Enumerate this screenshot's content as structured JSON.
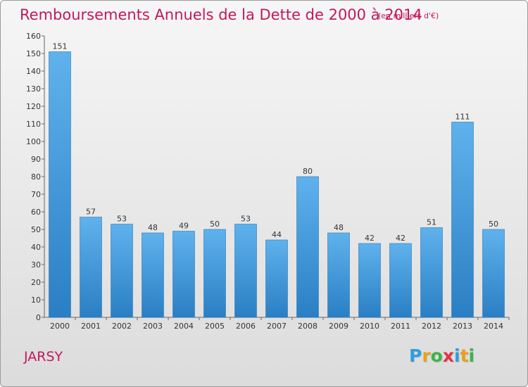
{
  "chart_data": {
    "type": "bar",
    "title": "Remboursements Annuels de la Dette de 2000 à 2014",
    "subtitle": "(en milliers d'€)",
    "categories": [
      "2000",
      "2001",
      "2002",
      "2003",
      "2004",
      "2005",
      "2006",
      "2007",
      "2008",
      "2009",
      "2010",
      "2011",
      "2012",
      "2013",
      "2014"
    ],
    "values": [
      151,
      57,
      53,
      48,
      49,
      50,
      53,
      44,
      80,
      48,
      42,
      42,
      51,
      111,
      50
    ],
    "ylim": [
      0,
      160
    ],
    "yticks": [
      0,
      10,
      20,
      30,
      40,
      50,
      60,
      70,
      80,
      90,
      100,
      110,
      120,
      130,
      140,
      150,
      160
    ],
    "xlabel": "",
    "ylabel": "",
    "grid": false,
    "bar_color": "#4a9fe0"
  },
  "footer": {
    "commune": "JARSY",
    "logo_letters": [
      "P",
      "r",
      "o",
      "x",
      "i",
      "t",
      "i"
    ],
    "logo_colors": [
      "#2e9ee0",
      "#e8a21a",
      "#3ab54a",
      "#e0344a",
      "#2e9ee0",
      "#e8a21a",
      "#3ab54a"
    ]
  }
}
